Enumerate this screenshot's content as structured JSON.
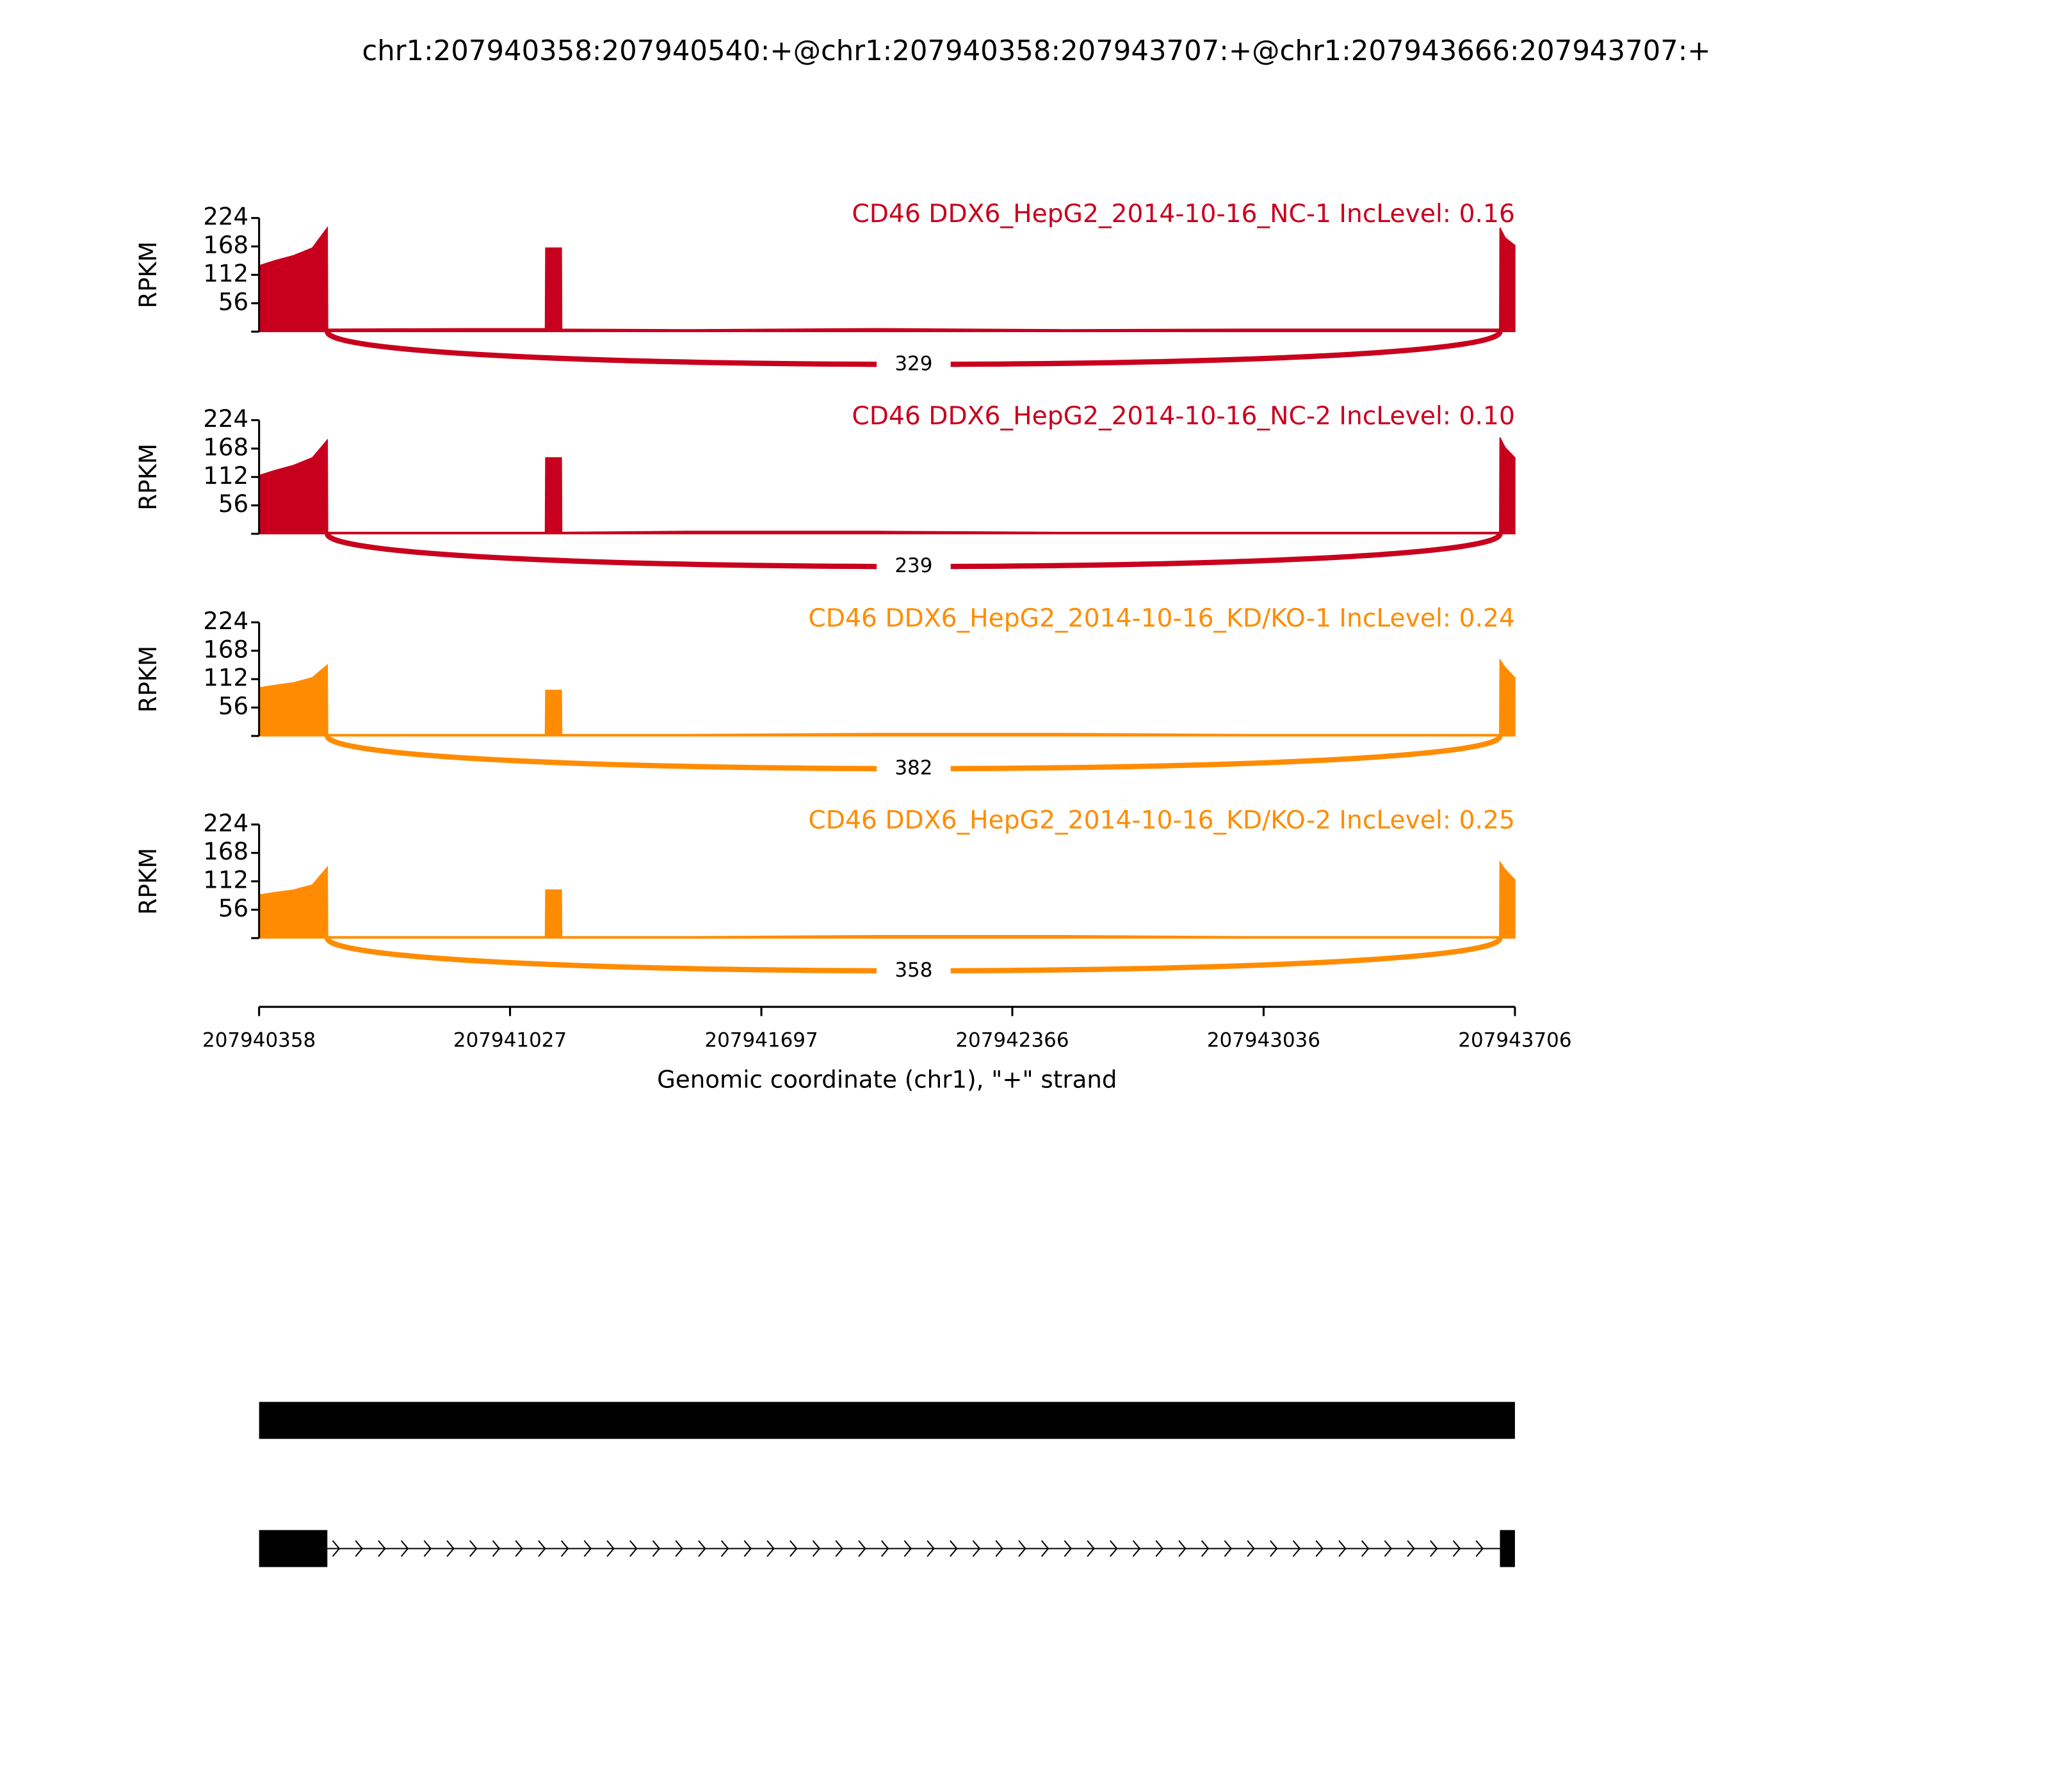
{
  "chart_data": {
    "type": "sashimi",
    "title": "chr1:207940358:207940540:+@chr1:207940358:207943707:+@chr1:207943666:207943707:+",
    "ylabel": "RPKM",
    "xlabel": "Genomic coordinate (chr1), \"+\" strand",
    "ylim": [
      0,
      224
    ],
    "yticks": [
      56,
      112,
      168,
      224
    ],
    "xlim": [
      207940358,
      207943706
    ],
    "xticks": [
      207940358,
      207941027,
      207941697,
      207942366,
      207943036,
      207943706
    ],
    "x": [
      207940358,
      207940400,
      207940450,
      207940500,
      207940540,
      207940541,
      207940900,
      207941121,
      207941122,
      207941164,
      207941165,
      207941500,
      207942000,
      207942500,
      207943000,
      207943665,
      207943666,
      207943680,
      207943706
    ],
    "junction": {
      "start": 207940540,
      "end": 207943666
    },
    "tracks": [
      {
        "label": "CD46 DDX6_HepG2_2014-10-16_NC-1 IncLevel: 0.16",
        "color": "#c8001e",
        "values": [
          130,
          140,
          150,
          165,
          205,
          5,
          6,
          6,
          165,
          165,
          5,
          4,
          6,
          4,
          5,
          5,
          205,
          185,
          170
        ],
        "junction_count": 329
      },
      {
        "label": "CD46 DDX6_HepG2_2014-10-16_NC-2 IncLevel: 0.10",
        "color": "#c8001e",
        "values": [
          115,
          125,
          135,
          150,
          185,
          3,
          3,
          3,
          150,
          150,
          3,
          5,
          5,
          3,
          3,
          3,
          190,
          170,
          150
        ],
        "junction_count": 239
      },
      {
        "label": "CD46 DDX6_HepG2_2014-10-16_KD/KO-1 IncLevel: 0.24",
        "color": "#ff8c00",
        "values": [
          95,
          100,
          105,
          115,
          140,
          3,
          3,
          3,
          90,
          90,
          3,
          3,
          5,
          5,
          3,
          3,
          150,
          135,
          115
        ],
        "junction_count": 382
      },
      {
        "label": "CD46 DDX6_HepG2_2014-10-16_KD/KO-2 IncLevel: 0.25",
        "color": "#ff8c00",
        "values": [
          85,
          90,
          95,
          105,
          140,
          3,
          3,
          3,
          95,
          95,
          3,
          3,
          5,
          5,
          3,
          3,
          150,
          135,
          115
        ],
        "junction_count": 358
      }
    ],
    "transcripts": [
      [
        [
          207940358,
          207943706
        ]
      ],
      [
        [
          207940358,
          207940540
        ],
        [
          207943666,
          207943706
        ]
      ]
    ]
  }
}
